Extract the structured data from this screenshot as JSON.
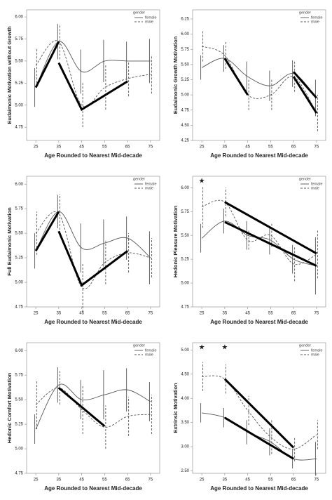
{
  "chart_data": [
    {
      "type": "line",
      "y_label": "Eudaimonic Motivation without Growth",
      "x_label": "Age Rounded to Nearest Mid-decade",
      "legend_title": "gender",
      "x": [
        25,
        35,
        45,
        55,
        65,
        75
      ],
      "xlim": [
        21,
        79
      ],
      "xticks": [
        25,
        35,
        45,
        55,
        65,
        75
      ],
      "ylim": [
        4.6,
        6.08
      ],
      "yticks": [
        4.75,
        {
          "value": 5,
          "label": "5.00"
        },
        {
          "value": 5.25,
          "label": "5.25"
        },
        {
          "value": 5.5,
          "label": "5.50"
        },
        5.75,
        {
          "value": 6,
          "label": "6.00"
        }
      ],
      "series": [
        {
          "name": "female",
          "color": "#555555",
          "dash": false,
          "values": [
            5.2,
            5.72,
            5.38,
            5.5,
            5.5,
            5.5
          ],
          "errors": [
            0.22,
            0.2,
            0.25,
            0.24,
            0.22,
            0.25
          ]
        },
        {
          "name": "male",
          "color": "#555555",
          "dash": true,
          "values": [
            5.45,
            5.72,
            5.0,
            5.2,
            5.3,
            5.35
          ],
          "errors": [
            0.2,
            0.2,
            0.25,
            0.25,
            0.2,
            0.22
          ]
        }
      ],
      "trend_lines": [
        {
          "x": [
            25,
            35
          ],
          "values": [
            5.2,
            5.72
          ]
        },
        {
          "x": [
            35,
            45,
            65
          ],
          "values": [
            5.48,
            4.95,
            5.27
          ]
        }
      ]
    },
    {
      "type": "line",
      "y_label": "Eudaimonic Growth Motivation",
      "x_label": "Age Rounded to Nearest Mid-decade",
      "legend_title": "gender",
      "x": [
        25,
        35,
        45,
        55,
        65,
        75
      ],
      "xlim": [
        21,
        79
      ],
      "xticks": [
        25,
        35,
        45,
        55,
        65,
        75
      ],
      "ylim": [
        4.25,
        6.4
      ],
      "yticks": [
        4.25,
        {
          "value": 4.5,
          "label": "4.50"
        },
        4.75,
        {
          "value": 5,
          "label": "5.00"
        },
        5.25,
        {
          "value": 5.5,
          "label": "5.50"
        },
        5.75,
        {
          "value": 6,
          "label": "6.00"
        },
        6.25
      ],
      "series": [
        {
          "name": "female",
          "color": "#555555",
          "dash": false,
          "values": [
            5.45,
            5.6,
            5.3,
            5.15,
            5.35,
            4.95
          ],
          "errors": [
            0.2,
            0.22,
            0.25,
            0.25,
            0.22,
            0.3
          ]
        },
        {
          "name": "male",
          "color": "#555555",
          "dash": true,
          "values": [
            5.8,
            5.65,
            5.0,
            5.0,
            5.3,
            4.7
          ],
          "errors": [
            0.25,
            0.22,
            0.25,
            0.25,
            0.25,
            0.3
          ]
        }
      ],
      "trend_lines": [
        {
          "x": [
            35,
            45
          ],
          "values": [
            5.6,
            5.0
          ]
        },
        {
          "x": [
            65,
            75
          ],
          "values": [
            5.38,
            4.95
          ]
        },
        {
          "x": [
            65,
            75
          ],
          "values": [
            5.3,
            4.7
          ]
        }
      ]
    },
    {
      "type": "line",
      "y_label": "Full Eudaimonic Motivation",
      "x_label": "Age Rounded to Nearest Mid-decade",
      "legend_title": "gender",
      "x": [
        25,
        35,
        45,
        55,
        65,
        75
      ],
      "xlim": [
        21,
        79
      ],
      "xticks": [
        25,
        35,
        45,
        55,
        65,
        75
      ],
      "ylim": [
        4.75,
        6.08
      ],
      "yticks": [
        4.75,
        {
          "value": 5,
          "label": "5.00"
        },
        5.25,
        {
          "value": 5.5,
          "label": "5.50"
        },
        5.75,
        {
          "value": 6,
          "label": "6.00"
        }
      ],
      "series": [
        {
          "name": "female",
          "color": "#555555",
          "dash": false,
          "values": [
            5.32,
            5.72,
            5.35,
            5.4,
            5.45,
            5.25
          ],
          "errors": [
            0.18,
            0.17,
            0.25,
            0.24,
            0.22,
            0.27
          ]
        },
        {
          "name": "male",
          "color": "#555555",
          "dash": true,
          "values": [
            5.5,
            5.7,
            4.95,
            5.2,
            5.3,
            5.25
          ],
          "errors": [
            0.22,
            0.2,
            0.25,
            0.22,
            0.2,
            0.2
          ]
        }
      ],
      "trend_lines": [
        {
          "x": [
            25,
            35
          ],
          "values": [
            5.32,
            5.72
          ]
        },
        {
          "x": [
            35,
            45,
            65
          ],
          "values": [
            5.52,
            4.97,
            5.32
          ]
        }
      ]
    },
    {
      "type": "line",
      "y_label": "Hedonic Pleasure Motivation",
      "x_label": "Age Rounded to Nearest Mid-decade",
      "legend_title": "gender",
      "x": [
        25,
        35,
        45,
        55,
        65,
        75
      ],
      "xlim": [
        21,
        79
      ],
      "xticks": [
        25,
        35,
        45,
        55,
        65,
        75
      ],
      "ylim": [
        4.75,
        6.12
      ],
      "yticks": [
        4.75,
        {
          "value": 5,
          "label": "5.00"
        },
        5.25,
        {
          "value": 5.5,
          "label": "5.50"
        },
        5.75,
        {
          "value": 6,
          "label": "6.00"
        }
      ],
      "marker": "★",
      "marked_x": [
        25
      ],
      "series": [
        {
          "name": "female",
          "color": "#555555",
          "dash": false,
          "values": [
            5.47,
            5.65,
            5.5,
            5.45,
            5.25,
            5.18
          ],
          "errors": [
            0.15,
            0.13,
            0.15,
            0.15,
            0.15,
            0.3
          ]
        },
        {
          "name": "male",
          "color": "#555555",
          "dash": true,
          "values": [
            5.8,
            5.85,
            5.45,
            5.5,
            5.2,
            5.3
          ],
          "errors": [
            0.22,
            0.15,
            0.1,
            0.12,
            0.18,
            0.25
          ]
        }
      ],
      "trend_lines": [
        {
          "x": [
            35,
            75
          ],
          "values": [
            5.85,
            5.31
          ]
        },
        {
          "x": [
            35,
            75
          ],
          "values": [
            5.64,
            5.18
          ]
        }
      ]
    },
    {
      "type": "line",
      "y_label": "Hedonic Comfort Motivation",
      "x_label": "Age Rounded to Nearest Mid-decade",
      "legend_title": "gender",
      "x": [
        25,
        35,
        45,
        55,
        65,
        75
      ],
      "xlim": [
        21,
        79
      ],
      "xticks": [
        25,
        35,
        45,
        55,
        65,
        75
      ],
      "ylim": [
        4.75,
        6.08
      ],
      "yticks": [
        4.75,
        {
          "value": 5,
          "label": "5.00"
        },
        5.25,
        {
          "value": 5.5,
          "label": "5.50"
        },
        5.75,
        {
          "value": 6,
          "label": "6.00"
        }
      ],
      "series": [
        {
          "name": "female",
          "color": "#555555",
          "dash": false,
          "values": [
            5.2,
            5.65,
            5.5,
            5.55,
            5.6,
            5.48
          ],
          "errors": [
            0.15,
            0.18,
            0.2,
            0.25,
            0.22,
            0.2
          ]
        },
        {
          "name": "male",
          "color": "#555555",
          "dash": true,
          "values": [
            5.45,
            5.62,
            5.4,
            5.22,
            5.33,
            5.35
          ],
          "errors": [
            0.25,
            0.17,
            0.25,
            0.22,
            0.2,
            0.2
          ]
        }
      ],
      "trend_lines": [
        {
          "x": [
            35,
            55
          ],
          "values": [
            5.62,
            5.23
          ]
        }
      ]
    },
    {
      "type": "line",
      "y_label": "Extrinsic Motivation",
      "x_label": "Age Rounded to Nearest Mid-decade",
      "legend_title": "gender",
      "x": [
        25,
        35,
        45,
        55,
        65,
        75
      ],
      "xlim": [
        21,
        79
      ],
      "xticks": [
        25,
        35,
        45,
        55,
        65,
        75
      ],
      "ylim": [
        2.45,
        5.15
      ],
      "yticks": [
        {
          "value": 2.5,
          "label": "2.50"
        },
        {
          "value": 3,
          "label": "3.00"
        },
        {
          "value": 3.5,
          "label": "3.50"
        },
        {
          "value": 4,
          "label": "4.00"
        },
        {
          "value": 4.5,
          "label": "4.50"
        },
        {
          "value": 5,
          "label": "5.00"
        }
      ],
      "marker": "★",
      "marked_x": [
        25,
        35
      ],
      "series": [
        {
          "name": "female",
          "color": "#555555",
          "dash": false,
          "values": [
            3.7,
            3.6,
            3.3,
            3.1,
            2.75,
            2.75
          ],
          "errors": [
            0.2,
            0.2,
            0.25,
            0.28,
            0.2,
            0.35
          ]
        },
        {
          "name": "male",
          "color": "#555555",
          "dash": true,
          "values": [
            4.45,
            4.4,
            3.75,
            3.2,
            2.95,
            3.25
          ],
          "errors": [
            0.3,
            0.3,
            0.3,
            0.35,
            0.25,
            0.3
          ]
        }
      ],
      "trend_lines": [
        {
          "x": [
            35,
            65
          ],
          "values": [
            4.4,
            2.98
          ]
        },
        {
          "x": [
            35,
            65
          ],
          "values": [
            3.6,
            2.75
          ]
        }
      ]
    }
  ]
}
